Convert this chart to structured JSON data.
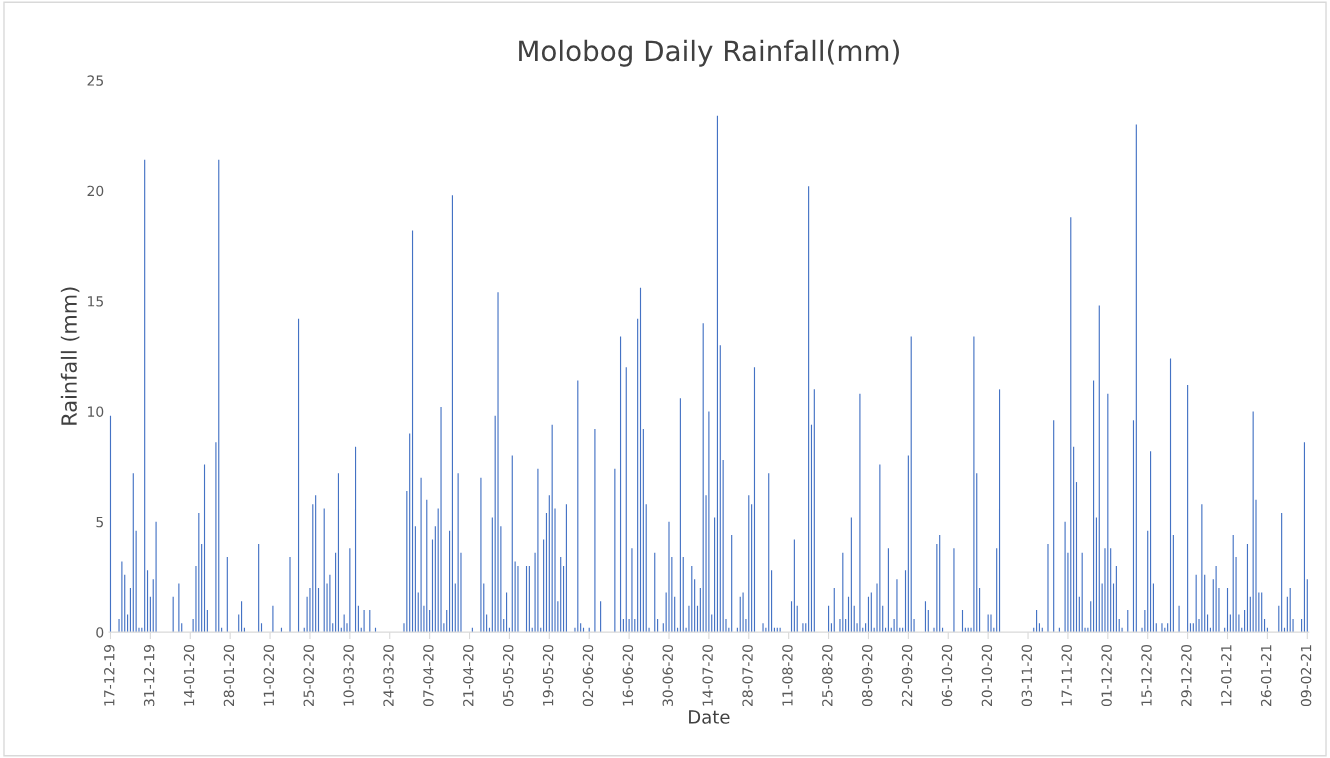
{
  "chart_data": {
    "type": "bar",
    "title": "Molobog Daily Rainfall(mm)",
    "xlabel": "Date",
    "ylabel": "Rainfall (mm)",
    "categories": [
      "17-12-19",
      null,
      null,
      null,
      null,
      null,
      null,
      null,
      null,
      null,
      null,
      null,
      null,
      null,
      "31-12-19",
      null,
      null,
      null,
      null,
      null,
      null,
      null,
      null,
      null,
      null,
      null,
      null,
      null,
      "14-01-20",
      null,
      null,
      null,
      null,
      null,
      null,
      null,
      null,
      null,
      null,
      null,
      null,
      null,
      "28-01-20",
      null,
      null,
      null,
      null,
      null,
      null,
      null,
      null,
      null,
      null,
      null,
      null,
      null,
      "11-02-20",
      null,
      null,
      null,
      null,
      null,
      null,
      null,
      null,
      null,
      null,
      null,
      null,
      null,
      "25-02-20",
      null,
      null,
      null,
      null,
      null,
      null,
      null,
      null,
      null,
      null,
      null,
      null,
      null,
      "10-03-20",
      null,
      null,
      null,
      null,
      null,
      null,
      null,
      null,
      null,
      null,
      null,
      null,
      null,
      "24-03-20",
      null,
      null,
      null,
      null,
      null,
      null,
      null,
      null,
      null,
      null,
      null,
      null,
      null,
      "07-04-20",
      null,
      null,
      null,
      null,
      null,
      null,
      null,
      null,
      null,
      null,
      null,
      null,
      null,
      "21-04-20",
      null,
      null,
      null,
      null,
      null,
      null,
      null,
      null,
      null,
      null,
      null,
      null,
      null,
      "05-05-20",
      null,
      null,
      null,
      null,
      null,
      null,
      null,
      null,
      null,
      null,
      null,
      null,
      null,
      "19-05-20",
      null,
      null,
      null,
      null,
      null,
      null,
      null,
      null,
      null,
      null,
      null,
      null,
      null,
      "02-06-20",
      null,
      null,
      null,
      null,
      null,
      null,
      null,
      null,
      null,
      null,
      null,
      null,
      null,
      "16-06-20",
      null,
      null,
      null,
      null,
      null,
      null,
      null,
      null,
      null,
      null,
      null,
      null,
      null,
      "30-06-20",
      null,
      null,
      null,
      null,
      null,
      null,
      null,
      null,
      null,
      null,
      null,
      null,
      null,
      "14-07-20",
      null,
      null,
      null,
      null,
      null,
      null,
      null,
      null,
      null,
      null,
      null,
      null,
      null,
      "28-07-20",
      null,
      null,
      null,
      null,
      null,
      null,
      null,
      null,
      null,
      null,
      null,
      null,
      null,
      "11-08-20",
      null,
      null,
      null,
      null,
      null,
      null,
      null,
      null,
      null,
      null,
      null,
      null,
      null,
      "25-08-20",
      null,
      null,
      null,
      null,
      null,
      null,
      null,
      null,
      null,
      null,
      null,
      null,
      null,
      "08-09-20",
      null,
      null,
      null,
      null,
      null,
      null,
      null,
      null,
      null,
      null,
      null,
      null,
      null,
      "22-09-20",
      null,
      null,
      null,
      null,
      null,
      null,
      null,
      null,
      null,
      null,
      null,
      null,
      null,
      "06-10-20",
      null,
      null,
      null,
      null,
      null,
      null,
      null,
      null,
      null,
      null,
      null,
      null,
      null,
      "20-10-20",
      null,
      null,
      null,
      null,
      null,
      null,
      null,
      null,
      null,
      null,
      null,
      null,
      null,
      "03-11-20",
      null,
      null,
      null,
      null,
      null,
      null,
      null,
      null,
      null,
      null,
      null,
      null,
      null,
      "17-11-20",
      null,
      null,
      null,
      null,
      null,
      null,
      null,
      null,
      null,
      null,
      null,
      null,
      null,
      "01-12-20",
      null,
      null,
      null,
      null,
      null,
      null,
      null,
      null,
      null,
      null,
      null,
      null,
      null,
      "15-12-20",
      null,
      null,
      null,
      null,
      null,
      null,
      null,
      null,
      null,
      null,
      null,
      null,
      null,
      "29-12-20",
      null,
      null,
      null,
      null,
      null,
      null,
      null,
      null,
      null,
      null,
      null,
      null,
      null,
      "12-01-21",
      null,
      null,
      null,
      null,
      null,
      null,
      null,
      null,
      null,
      null,
      null,
      null,
      null,
      "26-01-21",
      null,
      null,
      null,
      null,
      null,
      null,
      null,
      null,
      null,
      null,
      null,
      null,
      null,
      "09-02-21"
    ],
    "values": [
      9.8,
      0,
      0,
      0.6,
      3.2,
      2.6,
      0.8,
      2.0,
      7.2,
      4.6,
      0.2,
      0.2,
      21.4,
      2.8,
      1.6,
      2.4,
      5.0,
      0,
      0,
      0,
      0,
      0,
      1.6,
      0,
      2.2,
      0.4,
      0,
      0,
      0,
      0.6,
      3.0,
      5.4,
      4.0,
      7.6,
      1.0,
      0,
      0,
      8.6,
      21.4,
      0.2,
      0,
      3.4,
      0,
      0,
      0,
      0.8,
      1.4,
      0.2,
      0,
      0,
      0,
      0,
      4.0,
      0.4,
      0,
      0,
      0,
      1.2,
      0,
      0,
      0.2,
      0,
      0,
      3.4,
      0,
      0,
      14.2,
      0,
      0.2,
      1.6,
      2.0,
      5.8,
      6.2,
      2.0,
      0,
      5.6,
      2.2,
      2.6,
      0.4,
      3.6,
      7.2,
      0.2,
      0.8,
      0.4,
      3.8,
      0,
      8.4,
      1.2,
      0.2,
      1.0,
      0,
      1.0,
      0,
      0.2,
      0,
      0,
      0,
      0,
      0,
      0,
      0,
      0,
      0,
      0.4,
      6.4,
      9.0,
      18.2,
      4.8,
      1.8,
      7.0,
      1.2,
      6.0,
      1.0,
      4.2,
      4.8,
      5.6,
      10.2,
      0.4,
      1.0,
      4.6,
      19.8,
      2.2,
      7.2,
      3.6,
      0,
      0,
      0,
      0.2,
      0,
      0,
      7.0,
      2.2,
      0.8,
      0.2,
      5.2,
      9.8,
      15.4,
      4.8,
      0.6,
      1.8,
      0.2,
      8.0,
      3.2,
      3.0,
      0,
      0,
      3.0,
      3.0,
      0.2,
      3.6,
      7.4,
      0.2,
      4.2,
      5.4,
      6.2,
      9.4,
      5.6,
      1.4,
      3.4,
      3.0,
      5.8,
      0,
      0,
      0.2,
      11.4,
      0.4,
      0.2,
      0,
      0.2,
      0,
      9.2,
      0,
      1.4,
      0,
      0,
      0,
      0,
      7.4,
      0,
      13.4,
      0.6,
      12.0,
      0.6,
      3.8,
      0.6,
      14.2,
      15.6,
      9.2,
      5.8,
      0.2,
      0,
      3.6,
      0.6,
      0,
      0.4,
      1.8,
      5.0,
      3.4,
      1.6,
      0.2,
      10.6,
      3.4,
      0.2,
      1.2,
      3.0,
      2.4,
      1.2,
      2.0,
      14.0,
      6.2,
      10.0,
      0.8,
      5.2,
      23.4,
      13.0,
      7.8,
      0.6,
      0.2,
      4.4,
      0,
      0.2,
      1.6,
      1.8,
      0.6,
      6.2,
      5.8,
      12.0,
      0,
      0,
      0.4,
      0.2,
      7.2,
      2.8,
      0.2,
      0.2,
      0.2,
      0,
      0,
      0,
      1.4,
      4.2,
      1.2,
      0,
      0.4,
      0.4,
      20.2,
      9.4,
      11.0,
      0,
      0,
      0,
      0,
      1.2,
      0.4,
      2.0,
      0,
      0.6,
      3.6,
      0.6,
      1.6,
      5.2,
      1.2,
      0.4,
      10.8,
      0.2,
      0.4,
      1.6,
      1.8,
      0.2,
      2.2,
      7.6,
      1.2,
      0.2,
      3.8,
      0.2,
      0.6,
      2.4,
      0.2,
      0.2,
      2.8,
      8.0,
      13.4,
      0.6,
      0,
      0,
      0,
      1.4,
      1.0,
      0,
      0.2,
      4.0,
      4.4,
      0.2,
      0,
      0,
      0,
      3.8,
      0,
      0,
      1.0,
      0.2,
      0.2,
      0.2,
      13.4,
      7.2,
      2.0,
      0,
      0,
      0.8,
      0.8,
      0.2,
      3.8,
      11.0,
      0,
      0,
      0,
      0,
      0,
      0,
      0,
      0,
      0,
      0,
      0,
      0.2,
      1.0,
      0.4,
      0.2,
      0,
      4.0,
      0,
      9.6,
      0,
      0.2,
      0,
      5.0,
      3.6,
      18.8,
      8.4,
      6.8,
      1.6,
      3.6,
      0.2,
      0.2,
      1.4,
      11.4,
      5.2,
      14.8,
      2.2,
      3.8,
      10.8,
      3.8,
      2.2,
      3.0,
      0.6,
      0.2,
      0,
      1.0,
      0,
      9.6,
      23.0,
      0,
      0.2,
      1.0,
      4.6,
      8.2,
      2.2,
      0.4,
      0,
      0.4,
      0.2,
      0.4,
      12.4,
      4.4,
      0,
      1.2,
      0,
      0,
      11.2,
      0.4,
      0.4,
      2.6,
      0.6,
      5.8,
      2.6,
      0.8,
      0.2,
      2.4,
      3.0,
      2.0,
      0,
      0.2,
      2.0,
      0.8,
      4.4,
      3.4,
      0.8,
      0.2,
      1.0,
      4.0,
      1.6,
      10.0,
      6.0,
      1.8,
      1.8,
      0.6,
      0.2,
      0,
      0,
      0,
      1.2,
      5.4,
      0.2,
      1.6,
      2.0,
      0.6,
      0,
      0,
      0.6,
      8.6,
      2.4
    ],
    "color": "#4472c4",
    "ylim": [
      0,
      25
    ],
    "yticks": [
      0,
      5,
      10,
      15,
      20,
      25
    ],
    "grid": false,
    "legend": false
  }
}
